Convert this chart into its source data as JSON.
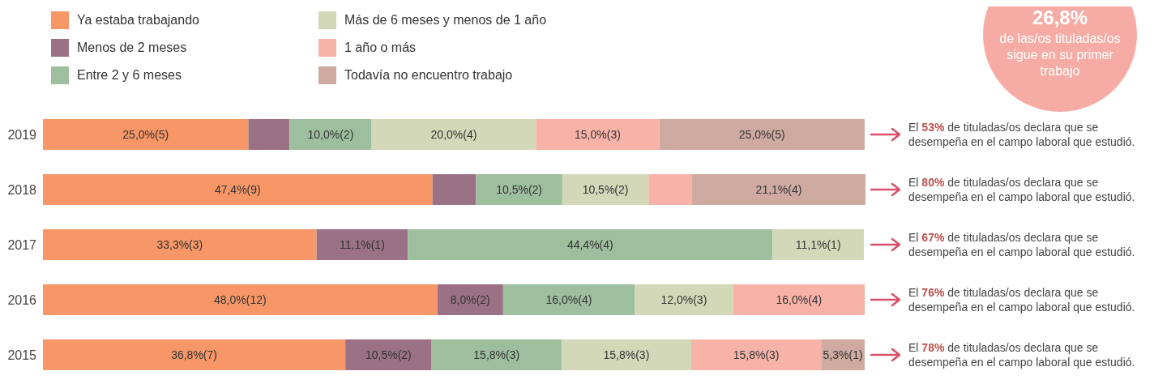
{
  "chart_data": {
    "type": "bar",
    "orientation": "horizontal",
    "stacked": true,
    "legend": "top left",
    "categories": [
      "2019",
      "2018",
      "2017",
      "2016",
      "2015"
    ],
    "series": [
      {
        "name": "Ya estaba trabajando",
        "color": "#f79767",
        "values": [
          25.0,
          47.4,
          33.3,
          48.0,
          36.8
        ],
        "value_labels": [
          "25,0%(5)",
          "47,4%(9)",
          "33,3%(3)",
          "48,0%(12)",
          "36,8%(7)"
        ]
      },
      {
        "name": "Menos de 2 meses",
        "color": "#9b7285",
        "values": [
          5.0,
          5.3,
          11.1,
          8.0,
          10.5
        ],
        "value_labels": [
          null,
          null,
          "11,1%(1)",
          "8,0%(2)",
          "10,5%(2)"
        ]
      },
      {
        "name": "Entre 2 y 6 meses",
        "color": "#9dbf9e",
        "values": [
          10.0,
          10.5,
          44.4,
          16.0,
          15.8
        ],
        "value_labels": [
          "10,0%(2)",
          "10,5%(2)",
          "44,4%(4)",
          "16,0%(4)",
          "15,8%(3)"
        ]
      },
      {
        "name": "Más de 6 meses y menos de 1 año",
        "color": "#d3d9b8",
        "values": [
          20.0,
          10.5,
          11.1,
          12.0,
          15.8
        ],
        "value_labels": [
          "20,0%(4)",
          "10,5%(2)",
          "11,1%(1)",
          "12,0%(3)",
          "15,8%(3)"
        ]
      },
      {
        "name": "1 año o más",
        "color": "#f8b3a8",
        "values": [
          15.0,
          5.3,
          null,
          16.0,
          15.8
        ],
        "value_labels": [
          "15,0%(3)",
          null,
          null,
          "16,0%(4)",
          "15,8%(3)"
        ]
      },
      {
        "name": "Todavía no encuentro trabajo",
        "color": "#cfaaa0",
        "values": [
          25.0,
          21.1,
          null,
          null,
          5.3
        ],
        "value_labels": [
          "25,0%(5)",
          "21,1%(4)",
          null,
          null,
          "5,3%(1)"
        ]
      }
    ],
    "annotations": [
      "26,8%",
      "de las/os tituladas/os sigue en su primer trabajo",
      "El 53% de tituladas/os declara que se desempeña en el campo laboral que estudió.",
      "El 80% de tituladas/os declara que se desempeña en el campo laboral que estudió.",
      "El 67% de tituladas/os declara que se desempeña en el campo laboral que estudió.",
      "El 76% de tituladas/os declara que se desempeña en el campo laboral que estudió.",
      "El 78% de tituladas/os declara que se desempeña en el campo laboral que estudió."
    ]
  }
}
